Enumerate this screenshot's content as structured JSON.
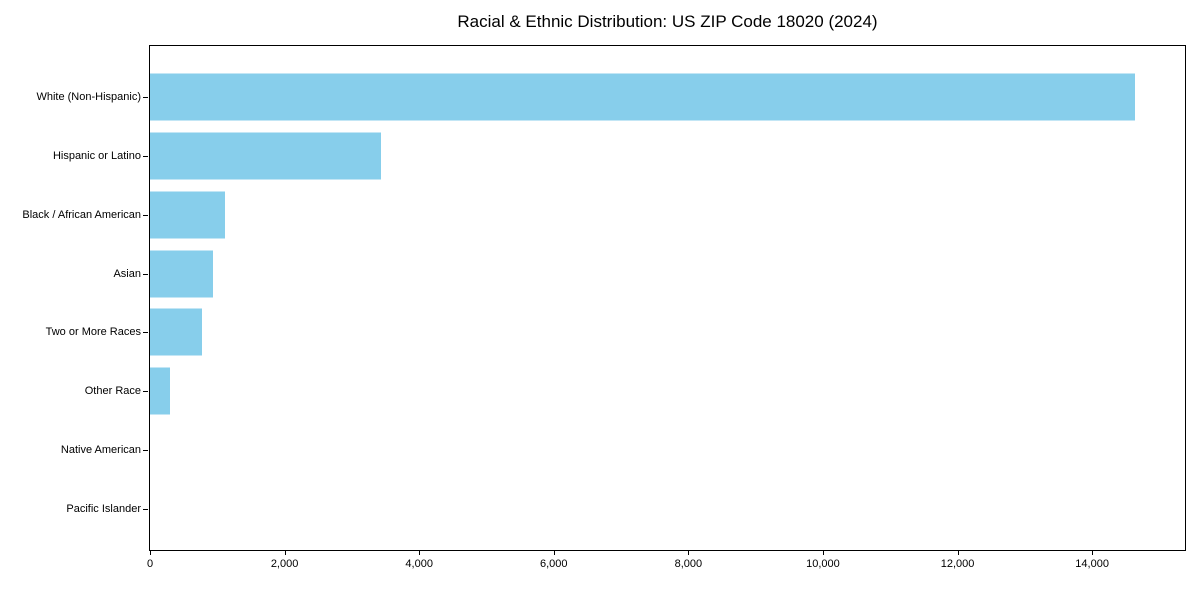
{
  "chart_data": {
    "type": "bar",
    "orientation": "horizontal",
    "title": "Racial & Ethnic Distribution: US ZIP Code 18020 (2024)",
    "categories": [
      "White (Non-Hispanic)",
      "Hispanic or Latino",
      "Black / African American",
      "Asian",
      "Two or More Races",
      "Other Race",
      "Native American",
      "Pacific Islander"
    ],
    "values": [
      14640,
      3440,
      1110,
      930,
      770,
      300,
      0,
      0
    ],
    "xlabel": "",
    "ylabel": "",
    "xlim": [
      0,
      15380
    ],
    "xticks": [
      {
        "value": 0,
        "label": "0"
      },
      {
        "value": 2000,
        "label": "2,000"
      },
      {
        "value": 4000,
        "label": "4,000"
      },
      {
        "value": 6000,
        "label": "6,000"
      },
      {
        "value": 8000,
        "label": "8,000"
      },
      {
        "value": 10000,
        "label": "10,000"
      },
      {
        "value": 12000,
        "label": "12,000"
      },
      {
        "value": 14000,
        "label": "14,000"
      }
    ],
    "grid": false,
    "legend_position": "none",
    "colors": {
      "bar": "#87CEEB",
      "text": "#000000",
      "spine": "#000000",
      "background": "#ffffff"
    }
  }
}
